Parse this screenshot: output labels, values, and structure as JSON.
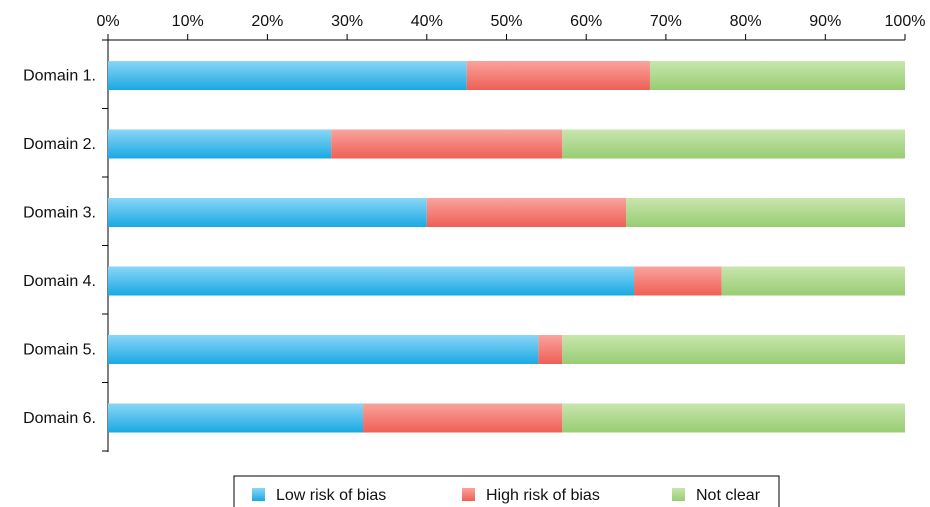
{
  "chart_data": {
    "type": "bar",
    "orientation": "horizontal",
    "stacked": true,
    "categories": [
      "Domain 1.",
      "Domain 2.",
      "Domain 3.",
      "Domain 4.",
      "Domain 5.",
      "Domain 6."
    ],
    "series": [
      {
        "name": "Low risk of bias",
        "values": [
          45,
          28,
          40,
          66,
          54,
          32
        ],
        "color": "#29b3e8"
      },
      {
        "name": "High risk of bias",
        "values": [
          23,
          29,
          25,
          11,
          3,
          25
        ],
        "color": "#f06b63"
      },
      {
        "name": "Not clear",
        "values": [
          32,
          43,
          35,
          23,
          43,
          43
        ],
        "color": "#a3d281"
      }
    ],
    "xlim": [
      0,
      100
    ],
    "xticks": [
      "0%",
      "10%",
      "20%",
      "30%",
      "40%",
      "50%",
      "60%",
      "70%",
      "80%",
      "90%",
      "100%"
    ],
    "x_axis_position": "top",
    "grid": false,
    "legend_position": "bottom"
  }
}
